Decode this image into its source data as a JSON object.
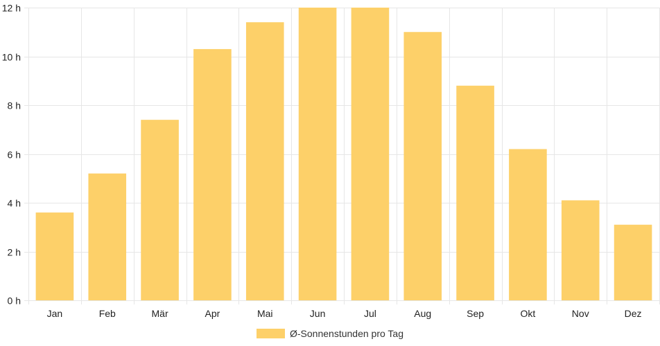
{
  "chart_data": {
    "type": "bar",
    "categories": [
      "Jan",
      "Feb",
      "Mär",
      "Apr",
      "Mai",
      "Jun",
      "Jul",
      "Aug",
      "Sep",
      "Okt",
      "Nov",
      "Dez"
    ],
    "series": [
      {
        "name": "Ø-Sonnenstunden pro Tag",
        "values": [
          3.6,
          5.2,
          7.4,
          10.3,
          11.4,
          12.0,
          12.0,
          11.0,
          8.8,
          6.2,
          4.1,
          3.1
        ],
        "color": "#fdd069"
      }
    ],
    "y_ticks": [
      0,
      2,
      4,
      6,
      8,
      10,
      12
    ],
    "y_tick_suffix": " h",
    "ylim": [
      0,
      12
    ],
    "grid": true,
    "grid_color": "#e6e6e6",
    "legend_position": "bottom-center"
  }
}
